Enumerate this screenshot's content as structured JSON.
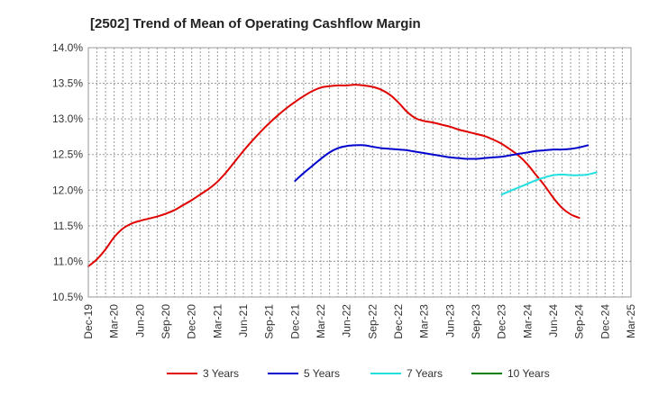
{
  "chart_data": {
    "type": "line",
    "title": "[2502]  Trend of Mean of Operating Cashflow Margin",
    "xlabel": "",
    "ylabel": "",
    "x_ticks": [
      "Dec-19",
      "Mar-20",
      "Jun-20",
      "Sep-20",
      "Dec-20",
      "Mar-21",
      "Jun-21",
      "Sep-21",
      "Dec-21",
      "Mar-22",
      "Jun-22",
      "Sep-22",
      "Dec-22",
      "Mar-23",
      "Jun-23",
      "Sep-23",
      "Dec-23",
      "Mar-24",
      "Jun-24",
      "Sep-24",
      "Dec-24",
      "Mar-25"
    ],
    "y_ticks": [
      "10.5%",
      "11.0%",
      "11.5%",
      "12.0%",
      "12.5%",
      "13.0%",
      "13.5%",
      "14.0%"
    ],
    "ylim": [
      10.5,
      14.0
    ],
    "grid": true,
    "legend_position": "bottom",
    "series": [
      {
        "name": "3 Years",
        "color": "#e00000",
        "points": [
          [
            "Dec-19",
            10.93
          ],
          [
            "Jan-20",
            11.03
          ],
          [
            "Feb-20",
            11.17
          ],
          [
            "Mar-20",
            11.34
          ],
          [
            "Apr-20",
            11.46
          ],
          [
            "May-20",
            11.53
          ],
          [
            "Jun-20",
            11.57
          ],
          [
            "Jul-20",
            11.6
          ],
          [
            "Aug-20",
            11.63
          ],
          [
            "Sep-20",
            11.67
          ],
          [
            "Oct-20",
            11.72
          ],
          [
            "Nov-20",
            11.79
          ],
          [
            "Dec-20",
            11.86
          ],
          [
            "Jan-21",
            11.94
          ],
          [
            "Feb-21",
            12.02
          ],
          [
            "Mar-21",
            12.12
          ],
          [
            "Apr-21",
            12.25
          ],
          [
            "May-21",
            12.4
          ],
          [
            "Jun-21",
            12.55
          ],
          [
            "Jul-21",
            12.69
          ],
          [
            "Aug-21",
            12.82
          ],
          [
            "Sep-21",
            12.94
          ],
          [
            "Oct-21",
            13.05
          ],
          [
            "Nov-21",
            13.15
          ],
          [
            "Dec-21",
            13.24
          ],
          [
            "Jan-22",
            13.32
          ],
          [
            "Feb-22",
            13.39
          ],
          [
            "Mar-22",
            13.44
          ],
          [
            "Apr-22",
            13.46
          ],
          [
            "May-22",
            13.47
          ],
          [
            "Jun-22",
            13.47
          ],
          [
            "Jul-22",
            13.48
          ],
          [
            "Aug-22",
            13.47
          ],
          [
            "Sep-22",
            13.45
          ],
          [
            "Oct-22",
            13.41
          ],
          [
            "Nov-22",
            13.34
          ],
          [
            "Dec-22",
            13.23
          ],
          [
            "Jan-23",
            13.1
          ],
          [
            "Feb-23",
            13.01
          ],
          [
            "Mar-23",
            12.97
          ],
          [
            "Apr-23",
            12.95
          ],
          [
            "May-23",
            12.92
          ],
          [
            "Jun-23",
            12.89
          ],
          [
            "Jul-23",
            12.85
          ],
          [
            "Aug-23",
            12.82
          ],
          [
            "Sep-23",
            12.79
          ],
          [
            "Oct-23",
            12.76
          ],
          [
            "Nov-23",
            12.71
          ],
          [
            "Dec-23",
            12.65
          ],
          [
            "Jan-24",
            12.57
          ],
          [
            "Feb-24",
            12.48
          ],
          [
            "Mar-24",
            12.36
          ],
          [
            "Apr-24",
            12.21
          ],
          [
            "May-24",
            12.06
          ],
          [
            "Jun-24",
            11.89
          ],
          [
            "Jul-24",
            11.75
          ],
          [
            "Aug-24",
            11.66
          ],
          [
            "Sep-24",
            11.61
          ]
        ]
      },
      {
        "name": "5 Years",
        "color": "#0000cc",
        "points": [
          [
            "Dec-21",
            12.13
          ],
          [
            "Jan-22",
            12.24
          ],
          [
            "Feb-22",
            12.34
          ],
          [
            "Mar-22",
            12.44
          ],
          [
            "Apr-22",
            12.53
          ],
          [
            "May-22",
            12.59
          ],
          [
            "Jun-22",
            12.62
          ],
          [
            "Jul-22",
            12.63
          ],
          [
            "Aug-22",
            12.63
          ],
          [
            "Sep-22",
            12.61
          ],
          [
            "Oct-22",
            12.59
          ],
          [
            "Nov-22",
            12.58
          ],
          [
            "Dec-22",
            12.57
          ],
          [
            "Jan-23",
            12.56
          ],
          [
            "Feb-23",
            12.54
          ],
          [
            "Mar-23",
            12.52
          ],
          [
            "Apr-23",
            12.5
          ],
          [
            "May-23",
            12.48
          ],
          [
            "Jun-23",
            12.46
          ],
          [
            "Jul-23",
            12.45
          ],
          [
            "Aug-23",
            12.44
          ],
          [
            "Sep-23",
            12.44
          ],
          [
            "Oct-23",
            12.45
          ],
          [
            "Nov-23",
            12.46
          ],
          [
            "Dec-23",
            12.47
          ],
          [
            "Jan-24",
            12.49
          ],
          [
            "Feb-24",
            12.51
          ],
          [
            "Mar-24",
            12.53
          ],
          [
            "Apr-24",
            12.55
          ],
          [
            "May-24",
            12.56
          ],
          [
            "Jun-24",
            12.57
          ],
          [
            "Jul-24",
            12.57
          ],
          [
            "Aug-24",
            12.58
          ],
          [
            "Sep-24",
            12.6
          ],
          [
            "Oct-24",
            12.63
          ]
        ]
      },
      {
        "name": "7 Years",
        "color": "#22e0e0",
        "points": [
          [
            "Dec-23",
            11.94
          ],
          [
            "Jan-24",
            11.99
          ],
          [
            "Feb-24",
            12.04
          ],
          [
            "Mar-24",
            12.09
          ],
          [
            "Apr-24",
            12.14
          ],
          [
            "May-24",
            12.18
          ],
          [
            "Jun-24",
            12.21
          ],
          [
            "Jul-24",
            12.22
          ],
          [
            "Aug-24",
            12.21
          ],
          [
            "Sep-24",
            12.21
          ],
          [
            "Oct-24",
            12.22
          ],
          [
            "Nov-24",
            12.25
          ]
        ]
      },
      {
        "name": "10 Years",
        "color": "#008000",
        "points": []
      }
    ]
  }
}
